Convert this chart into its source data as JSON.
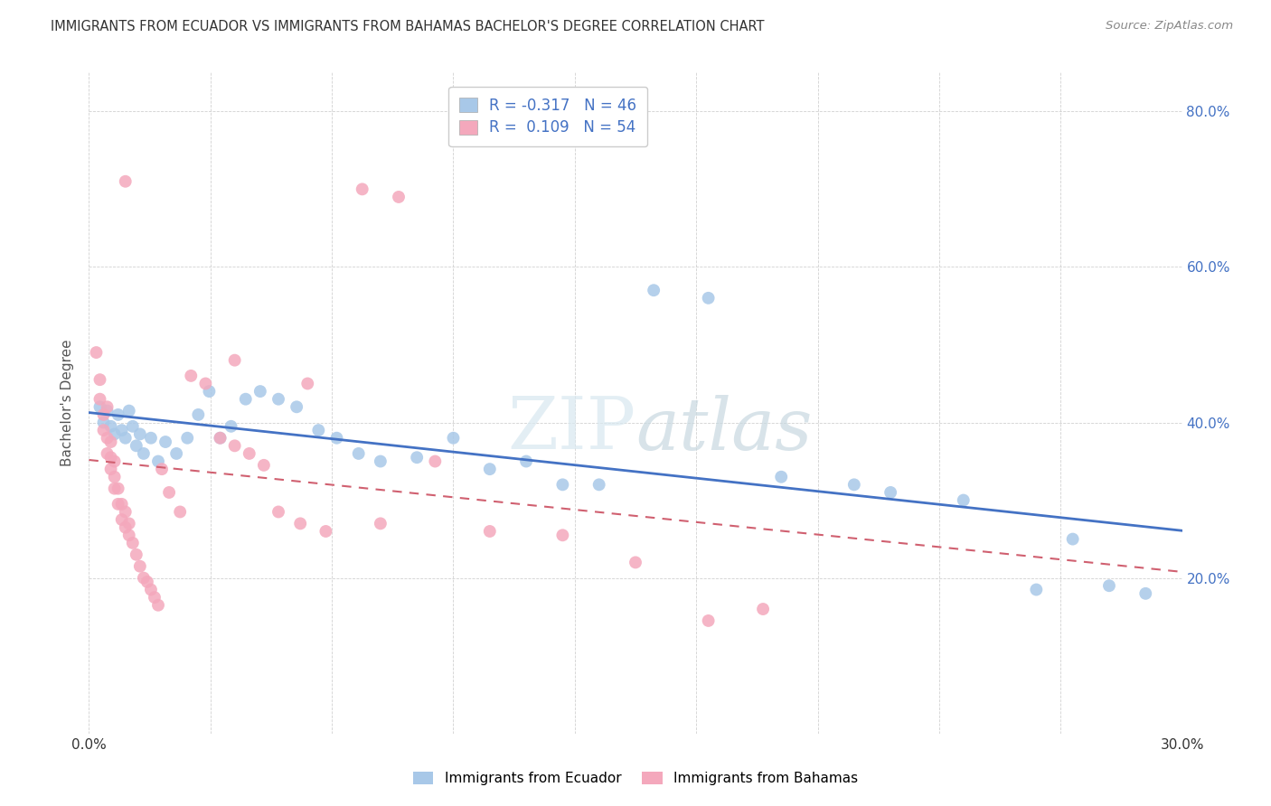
{
  "title": "IMMIGRANTS FROM ECUADOR VS IMMIGRANTS FROM BAHAMAS BACHELOR'S DEGREE CORRELATION CHART",
  "source": "Source: ZipAtlas.com",
  "ylabel": "Bachelor's Degree",
  "x_min": 0.0,
  "x_max": 0.3,
  "y_min": 0.0,
  "y_max": 0.85,
  "x_ticks": [
    0.0,
    0.03333,
    0.06667,
    0.1,
    0.13333,
    0.16667,
    0.2,
    0.23333,
    0.26667,
    0.3
  ],
  "y_ticks": [
    0.0,
    0.2,
    0.4,
    0.6,
    0.8
  ],
  "legend_R_ecuador": "-0.317",
  "legend_N_ecuador": "46",
  "legend_R_bahamas": "0.109",
  "legend_N_bahamas": "54",
  "color_ecuador": "#a8c8e8",
  "color_bahamas": "#f4a8bc",
  "color_line_ecuador": "#4472c4",
  "color_line_bahamas": "#d06070",
  "watermark": "ZIPatlas",
  "ecuador_x": [
    0.003,
    0.004,
    0.005,
    0.006,
    0.007,
    0.008,
    0.009,
    0.01,
    0.011,
    0.012,
    0.013,
    0.014,
    0.015,
    0.017,
    0.019,
    0.021,
    0.024,
    0.027,
    0.03,
    0.033,
    0.036,
    0.039,
    0.043,
    0.047,
    0.052,
    0.057,
    0.063,
    0.068,
    0.074,
    0.08,
    0.09,
    0.1,
    0.11,
    0.12,
    0.13,
    0.14,
    0.155,
    0.17,
    0.19,
    0.21,
    0.22,
    0.24,
    0.26,
    0.27,
    0.28,
    0.29
  ],
  "ecuador_y": [
    0.42,
    0.4,
    0.415,
    0.395,
    0.385,
    0.41,
    0.39,
    0.38,
    0.415,
    0.395,
    0.37,
    0.385,
    0.36,
    0.38,
    0.35,
    0.375,
    0.36,
    0.38,
    0.41,
    0.44,
    0.38,
    0.395,
    0.43,
    0.44,
    0.43,
    0.42,
    0.39,
    0.38,
    0.36,
    0.35,
    0.355,
    0.38,
    0.34,
    0.35,
    0.32,
    0.32,
    0.57,
    0.56,
    0.33,
    0.32,
    0.31,
    0.3,
    0.185,
    0.25,
    0.19,
    0.18
  ],
  "bahamas_x": [
    0.002,
    0.003,
    0.003,
    0.004,
    0.004,
    0.005,
    0.005,
    0.005,
    0.006,
    0.006,
    0.006,
    0.007,
    0.007,
    0.007,
    0.008,
    0.008,
    0.009,
    0.009,
    0.01,
    0.01,
    0.011,
    0.011,
    0.012,
    0.013,
    0.014,
    0.015,
    0.016,
    0.017,
    0.018,
    0.019,
    0.02,
    0.022,
    0.025,
    0.028,
    0.032,
    0.036,
    0.04,
    0.044,
    0.048,
    0.052,
    0.058,
    0.065,
    0.075,
    0.085,
    0.095,
    0.11,
    0.13,
    0.15,
    0.17,
    0.185,
    0.01,
    0.04,
    0.06,
    0.08
  ],
  "bahamas_y": [
    0.49,
    0.43,
    0.455,
    0.39,
    0.41,
    0.36,
    0.38,
    0.42,
    0.34,
    0.355,
    0.375,
    0.315,
    0.33,
    0.35,
    0.295,
    0.315,
    0.275,
    0.295,
    0.265,
    0.285,
    0.255,
    0.27,
    0.245,
    0.23,
    0.215,
    0.2,
    0.195,
    0.185,
    0.175,
    0.165,
    0.34,
    0.31,
    0.285,
    0.46,
    0.45,
    0.38,
    0.37,
    0.36,
    0.345,
    0.285,
    0.27,
    0.26,
    0.7,
    0.69,
    0.35,
    0.26,
    0.255,
    0.22,
    0.145,
    0.16,
    0.71,
    0.48,
    0.45,
    0.27
  ]
}
